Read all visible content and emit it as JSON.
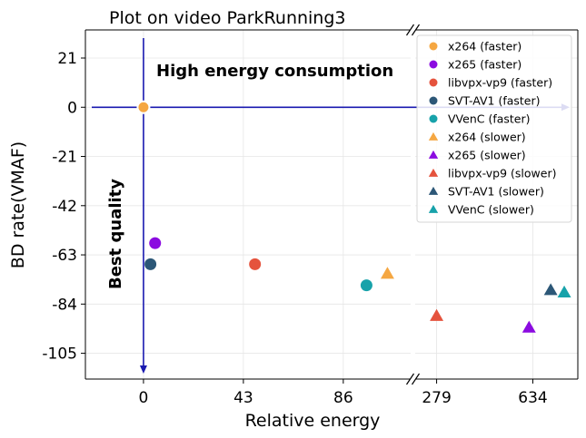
{
  "chart_data": {
    "type": "scatter",
    "title": "Plot on video ParkRunning3",
    "xlabel": "Relative energy",
    "ylabel": "BD rate(VMAF)",
    "x_axis": {
      "broken": true,
      "segments": [
        {
          "range": [
            -25,
            115
          ],
          "ticks": [
            0,
            43,
            86
          ]
        },
        {
          "range": [
            200,
            800
          ],
          "ticks": [
            279,
            634
          ]
        }
      ]
    },
    "ylim": [
      -116,
      33
    ],
    "y_ticks": [
      21,
      0,
      -21,
      -42,
      -63,
      -84,
      -105
    ],
    "grid": true,
    "legend_position": "top-right",
    "reference_lines": {
      "x": 0,
      "y": 0
    },
    "annotations": [
      {
        "text": "High energy consumption"
      },
      {
        "text": "Best quality"
      }
    ],
    "series": [
      {
        "name": "x264 (faster)",
        "marker": "circle",
        "color": "#f5a742",
        "points": [
          [
            0,
            0
          ]
        ]
      },
      {
        "name": "x265 (faster)",
        "marker": "circle",
        "color": "#8b0be0",
        "points": [
          [
            5,
            -58
          ]
        ]
      },
      {
        "name": "libvpx-vp9 (faster)",
        "marker": "circle",
        "color": "#e5533d",
        "points": [
          [
            48,
            -67
          ]
        ]
      },
      {
        "name": "SVT-AV1 (faster)",
        "marker": "circle",
        "color": "#2c5777",
        "points": [
          [
            3,
            -67
          ]
        ]
      },
      {
        "name": "VVenC (faster)",
        "marker": "circle",
        "color": "#17a2aa",
        "points": [
          [
            96,
            -76
          ]
        ]
      },
      {
        "name": "x264 (slower)",
        "marker": "triangle",
        "color": "#f5a742",
        "points": [
          [
            105,
            -71
          ]
        ]
      },
      {
        "name": "x265 (slower)",
        "marker": "triangle",
        "color": "#8b0be0",
        "points": [
          [
            620,
            -94
          ]
        ]
      },
      {
        "name": "libvpx-vp9 (slower)",
        "marker": "triangle",
        "color": "#e5533d",
        "points": [
          [
            279,
            -89
          ]
        ]
      },
      {
        "name": "SVT-AV1 (slower)",
        "marker": "triangle",
        "color": "#2c5777",
        "points": [
          [
            700,
            -78
          ]
        ]
      },
      {
        "name": "VVenC (slower)",
        "marker": "triangle",
        "color": "#17a2aa",
        "points": [
          [
            750,
            -79
          ]
        ]
      }
    ]
  }
}
